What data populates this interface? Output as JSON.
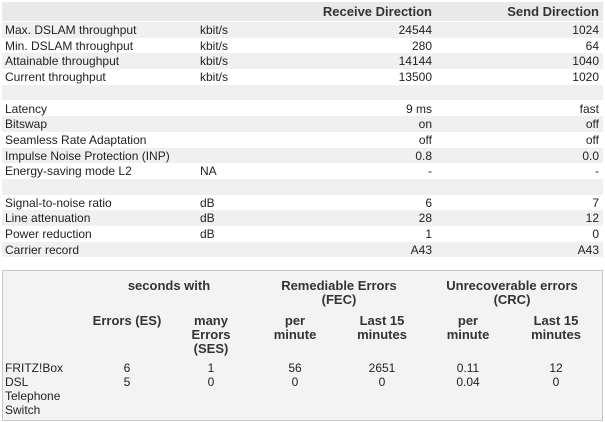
{
  "line_table": {
    "headers": {
      "receive": "Receive Direction",
      "send": "Send Direction"
    },
    "sections": [
      [
        {
          "label": "Max. DSLAM throughput",
          "unit": "kbit/s",
          "receive": "24544",
          "send": "1024"
        },
        {
          "label": "Min. DSLAM throughput",
          "unit": "kbit/s",
          "receive": "280",
          "send": "64"
        },
        {
          "label": "Attainable throughput",
          "unit": "kbit/s",
          "receive": "14144",
          "send": "1040"
        },
        {
          "label": "Current throughput",
          "unit": "kbit/s",
          "receive": "13500",
          "send": "1020"
        }
      ],
      [
        {
          "label": "Latency",
          "receive": "9 ms",
          "send": "fast"
        },
        {
          "label": "Bitswap",
          "receive": "on",
          "send": "off"
        },
        {
          "label": "Seamless Rate Adaptation",
          "receive": "off",
          "send": "off"
        },
        {
          "label": "Impulse Noise Protection (INP)",
          "receive": "0.8",
          "send": "0.0"
        },
        {
          "label": "Energy-saving mode L2",
          "unit": "NA",
          "receive": "-",
          "send": "-"
        }
      ],
      [
        {
          "label": "Signal-to-noise ratio",
          "unit": "dB",
          "receive": "6",
          "send": "7"
        },
        {
          "label": "Line attenuation",
          "unit": "dB",
          "receive": "28",
          "send": "12"
        },
        {
          "label": "Power reduction",
          "unit": "dB",
          "receive": "1",
          "send": "0"
        },
        {
          "label": "Carrier record",
          "receive": "A43",
          "send": "A43"
        }
      ]
    ]
  },
  "error_table": {
    "groups": [
      "seconds with",
      "Remediable Errors (FEC)",
      "Unrecoverable errors (CRC)"
    ],
    "columns": [
      "Errors (ES)",
      "many Errors (SES)",
      "per minute",
      "Last 15 minutes",
      "per minute",
      "Last 15 minutes"
    ],
    "rows": [
      {
        "label": "FRITZ!Box",
        "values": [
          "6",
          "1",
          "56",
          "2651",
          "0.11",
          "12"
        ]
      },
      {
        "label": "DSL Telephone Switch",
        "values": [
          "5",
          "0",
          "0",
          "0",
          "0.04",
          "0"
        ]
      }
    ]
  }
}
